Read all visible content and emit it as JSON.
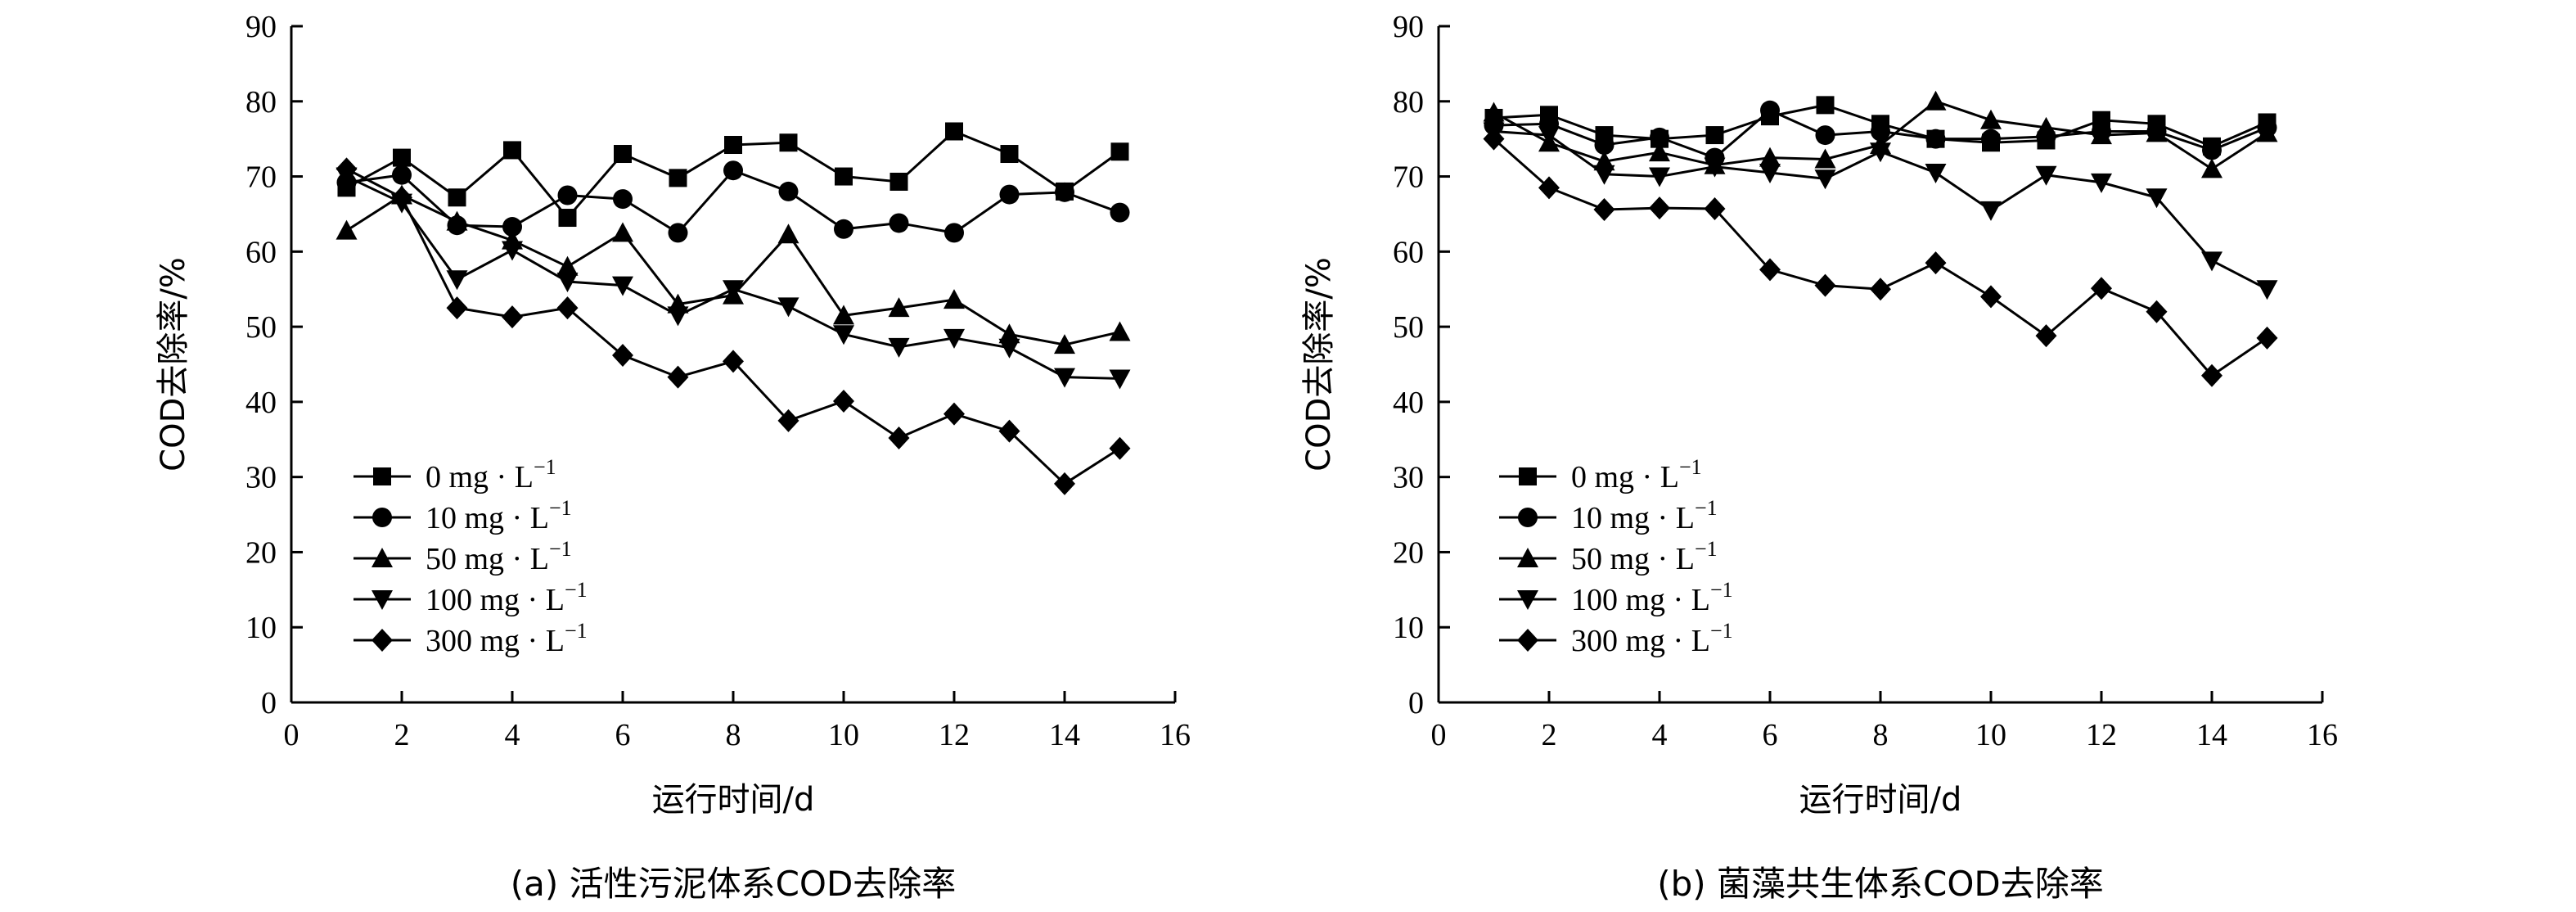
{
  "chart_data": [
    {
      "type": "line",
      "caption": "(a) 活性污泥体系COD去除率",
      "xlabel": "运行时间/d",
      "ylabel": "COD去除率/%",
      "xlim": [
        0,
        16
      ],
      "ylim": [
        0,
        90
      ],
      "xticks": [
        0,
        2,
        4,
        6,
        8,
        10,
        12,
        14,
        16
      ],
      "yticks": [
        0,
        10,
        20,
        30,
        40,
        50,
        60,
        70,
        80,
        90
      ],
      "legend_position": "lower-left",
      "x": [
        1,
        2,
        3,
        4,
        5,
        6,
        7,
        8,
        9,
        10,
        11,
        12,
        13,
        14,
        15
      ],
      "series": [
        {
          "name": "0 mg · L",
          "name_sup": "−1",
          "marker": "square",
          "values": [
            68.5,
            72.5,
            67.2,
            73.5,
            64.5,
            73.0,
            69.8,
            74.2,
            74.5,
            70.0,
            69.3,
            76.0,
            73.0,
            68.0,
            73.3
          ]
        },
        {
          "name": "10 mg · L",
          "name_sup": "−1",
          "marker": "circle",
          "values": [
            69.2,
            70.2,
            63.5,
            63.3,
            67.5,
            67.0,
            62.5,
            70.8,
            68.0,
            63.0,
            63.8,
            62.5,
            67.6,
            67.9,
            65.2
          ]
        },
        {
          "name": "50 mg · L",
          "name_sup": "−1",
          "marker": "triangle-up",
          "values": [
            62.8,
            67.5,
            64.0,
            61.5,
            58.0,
            62.5,
            53.0,
            54.2,
            62.3,
            51.5,
            52.5,
            53.6,
            49.0,
            47.6,
            49.3
          ]
        },
        {
          "name": "100 mg · L",
          "name_sup": "−1",
          "marker": "triangle-down",
          "values": [
            70.0,
            66.5,
            56.3,
            60.2,
            56.0,
            55.5,
            51.5,
            55.0,
            52.7,
            49.0,
            47.3,
            48.5,
            47.2,
            43.3,
            43.1
          ]
        },
        {
          "name": "300 mg · L",
          "name_sup": "−1",
          "marker": "diamond",
          "values": [
            71.0,
            67.2,
            52.5,
            51.3,
            52.5,
            46.2,
            43.3,
            45.4,
            37.5,
            40.1,
            35.2,
            38.4,
            36.1,
            29.1,
            33.8
          ]
        }
      ]
    },
    {
      "type": "line",
      "caption": "(b) 菌藻共生体系COD去除率",
      "xlabel": "运行时间/d",
      "ylabel": "COD去除率/%",
      "xlim": [
        0,
        16
      ],
      "ylim": [
        0,
        90
      ],
      "xticks": [
        0,
        2,
        4,
        6,
        8,
        10,
        12,
        14,
        16
      ],
      "yticks": [
        0,
        10,
        20,
        30,
        40,
        50,
        60,
        70,
        80,
        90
      ],
      "legend_position": "lower-left",
      "x": [
        1,
        2,
        3,
        4,
        5,
        6,
        7,
        8,
        9,
        10,
        11,
        12,
        13,
        14,
        15
      ],
      "series": [
        {
          "name": "0 mg · L",
          "name_sup": "−1",
          "marker": "square",
          "values": [
            77.8,
            78.2,
            75.5,
            75.0,
            75.5,
            78.0,
            79.5,
            77.0,
            75.0,
            74.5,
            74.8,
            77.5,
            77.0,
            74.0,
            77.2
          ]
        },
        {
          "name": "10 mg · L",
          "name_sup": "−1",
          "marker": "circle",
          "values": [
            76.8,
            77.0,
            74.2,
            75.2,
            72.5,
            78.8,
            75.5,
            76.0,
            75.0,
            75.0,
            75.3,
            76.0,
            76.0,
            73.5,
            76.5
          ]
        },
        {
          "name": "50 mg · L",
          "name_sup": "−1",
          "marker": "triangle-up",
          "values": [
            78.5,
            74.5,
            72.0,
            73.2,
            71.5,
            72.5,
            72.3,
            74.2,
            80.0,
            77.5,
            76.5,
            75.5,
            75.8,
            71.0,
            75.8
          ]
        },
        {
          "name": "100 mg · L",
          "name_sup": "−1",
          "marker": "triangle-down",
          "values": [
            76.0,
            75.5,
            70.3,
            70.0,
            71.3,
            70.5,
            69.7,
            73.3,
            70.5,
            65.5,
            70.2,
            69.2,
            67.2,
            58.8,
            55.0
          ]
        },
        {
          "name": "300 mg · L",
          "name_sup": "−1",
          "marker": "diamond",
          "values": [
            75.0,
            68.5,
            65.6,
            65.8,
            65.7,
            57.6,
            55.5,
            55.0,
            58.5,
            54.0,
            48.8,
            55.1,
            52.0,
            43.5,
            48.5
          ]
        }
      ]
    }
  ]
}
